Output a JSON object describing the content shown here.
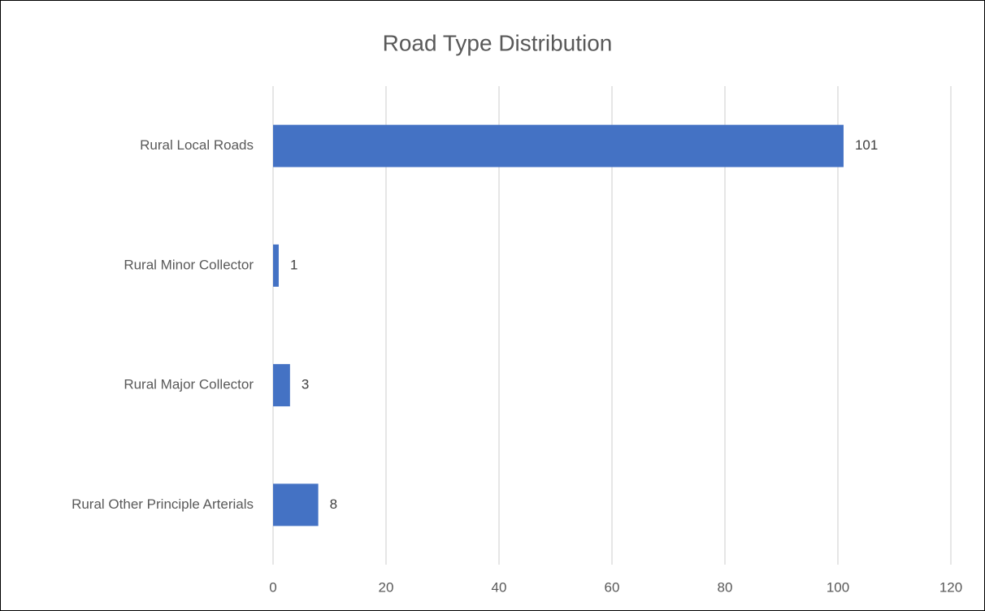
{
  "chart_data": {
    "type": "bar",
    "orientation": "horizontal",
    "title": "Road Type Distribution",
    "categories": [
      "Rural Local Roads",
      "Rural Minor Collector",
      "Rural Major Collector",
      "Rural Other Principle Arterials"
    ],
    "values": [
      101,
      1,
      3,
      8
    ],
    "color": "#4472c4",
    "xlim": [
      0,
      120
    ],
    "xticks": [
      0,
      20,
      40,
      60,
      80,
      100,
      120
    ],
    "grid": true
  }
}
